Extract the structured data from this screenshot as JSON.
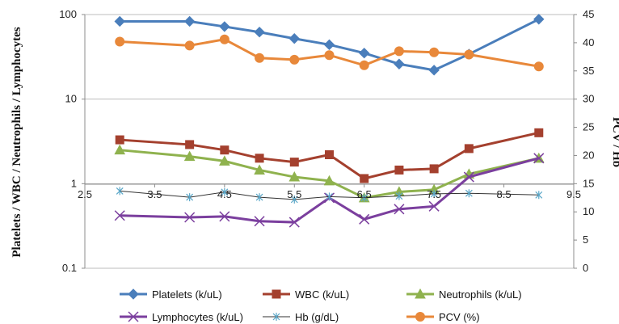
{
  "chart_data": {
    "type": "line",
    "title": "",
    "grid": "horizontal",
    "legend_position": "bottom",
    "x": [
      3,
      4,
      4.5,
      5,
      5.5,
      6,
      6.5,
      7,
      7.5,
      8,
      9
    ],
    "xlim": [
      2.5,
      9.5
    ],
    "x_ticks": [
      "2.5",
      "3.5",
      "4.5",
      "5.5",
      "6.5",
      "7.5",
      "8.5",
      "9.5"
    ],
    "y_left": {
      "label": "Platelets / WBC / Neutrophils / Lymphocytes",
      "scale": "log",
      "ylim": [
        0.1,
        100
      ],
      "ticks": [
        "0.1",
        "1",
        "10",
        "100"
      ]
    },
    "y_right": {
      "label": "PCV / Hb",
      "scale": "linear",
      "ylim": [
        0,
        45
      ],
      "ticks": [
        "0",
        "5",
        "10",
        "15",
        "20",
        "25",
        "30",
        "35",
        "40",
        "45"
      ]
    },
    "series": [
      {
        "name": "Platelets (k/uL)",
        "axis": "left",
        "color": "#4a7ebb",
        "marker": "diamond",
        "values": [
          83,
          83,
          72,
          62,
          52,
          44,
          35,
          26,
          22,
          34,
          88
        ]
      },
      {
        "name": "WBC (k/uL)",
        "axis": "left",
        "color": "#a4402e",
        "marker": "square",
        "values": [
          3.3,
          2.9,
          2.5,
          2.0,
          1.8,
          2.2,
          1.15,
          1.45,
          1.5,
          2.6,
          4.0
        ]
      },
      {
        "name": "Neutrophils  (k/uL)",
        "axis": "left",
        "color": "#8fb24e",
        "marker": "triangle",
        "values": [
          2.5,
          2.1,
          1.85,
          1.45,
          1.2,
          1.08,
          0.68,
          0.8,
          0.85,
          1.3,
          2.0
        ]
      },
      {
        "name": "Lymphocytes (k/uL)",
        "axis": "left",
        "color": "#7b3f9e",
        "marker": "x",
        "values": [
          0.42,
          0.4,
          0.41,
          0.36,
          0.35,
          0.68,
          0.38,
          0.5,
          0.54,
          1.2,
          2.0
        ]
      },
      {
        "name": "Hb (g/dL)",
        "axis": "right",
        "color": "#333333",
        "marker": "star",
        "values": [
          13.7,
          12.6,
          13.5,
          12.6,
          12.2,
          12.7,
          12.5,
          12.8,
          13.2,
          13.3,
          13.0
        ]
      },
      {
        "name": "PCV (%)",
        "axis": "right",
        "color": "#e8883a",
        "marker": "circle",
        "values": [
          40.2,
          39.5,
          40.6,
          37.3,
          37.0,
          37.8,
          36.0,
          38.5,
          38.3,
          37.9,
          35.8
        ]
      }
    ]
  }
}
